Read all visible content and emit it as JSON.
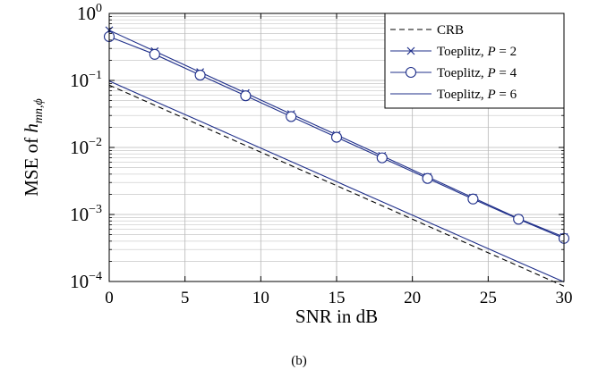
{
  "chart_data": {
    "type": "line",
    "xlabel": "SNR in dB",
    "ylabel_prefix": "MSE of ",
    "ylabel_symbol": "h",
    "ylabel_subscript": "mn,ϕ",
    "xlim": [
      0,
      30
    ],
    "ylim": [
      0.0001,
      1
    ],
    "yscale": "log",
    "grid": true,
    "legend_position": "top-right",
    "x_ticks": [
      "0",
      "5",
      "10",
      "15",
      "20",
      "25",
      "30"
    ],
    "y_ticks": [
      {
        "base": "10",
        "exp": "0"
      },
      {
        "base": "10",
        "exp": "−1"
      },
      {
        "base": "10",
        "exp": "−2"
      },
      {
        "base": "10",
        "exp": "−3"
      },
      {
        "base": "10",
        "exp": "−4"
      }
    ],
    "x": [
      0,
      3,
      6,
      9,
      12,
      15,
      18,
      21,
      24,
      27,
      30
    ],
    "series": [
      {
        "name": "CRB",
        "label_text": "CRB",
        "label_var": "",
        "label_eq": "",
        "style": "dashed",
        "marker": "none",
        "color": "#000000",
        "values": [
          0.085,
          0.0427,
          0.0214,
          0.0107,
          0.00536,
          0.00269,
          0.00135,
          0.000675,
          0.000338,
          0.00017,
          8.5e-05
        ]
      },
      {
        "name": "Toeplitz, P = 2",
        "label_text": "Toeplitz, ",
        "label_var": "P",
        "label_eq": " = 2",
        "style": "solid",
        "marker": "x",
        "color": "#1f2f8a",
        "values": [
          0.56,
          0.273,
          0.133,
          0.0647,
          0.0315,
          0.0154,
          0.0075,
          0.00365,
          0.00178,
          0.00087,
          0.00046
        ]
      },
      {
        "name": "Toeplitz, P = 4",
        "label_text": "Toeplitz, ",
        "label_var": "P",
        "label_eq": " = 4",
        "style": "solid",
        "marker": "o",
        "color": "#1f2f8a",
        "values": [
          0.45,
          0.245,
          0.12,
          0.059,
          0.0289,
          0.0142,
          0.007,
          0.00345,
          0.0017,
          0.00085,
          0.00044
        ]
      },
      {
        "name": "Toeplitz, P = 6",
        "label_text": "Toeplitz, ",
        "label_var": "P",
        "label_eq": " = 6",
        "style": "solid",
        "marker": "none",
        "color": "#1f2f8a",
        "values": [
          0.098,
          0.049,
          0.0246,
          0.0123,
          0.00617,
          0.00309,
          0.00155,
          0.000777,
          0.000389,
          0.000195,
          9.85e-05
        ]
      }
    ]
  },
  "caption": "(b)"
}
